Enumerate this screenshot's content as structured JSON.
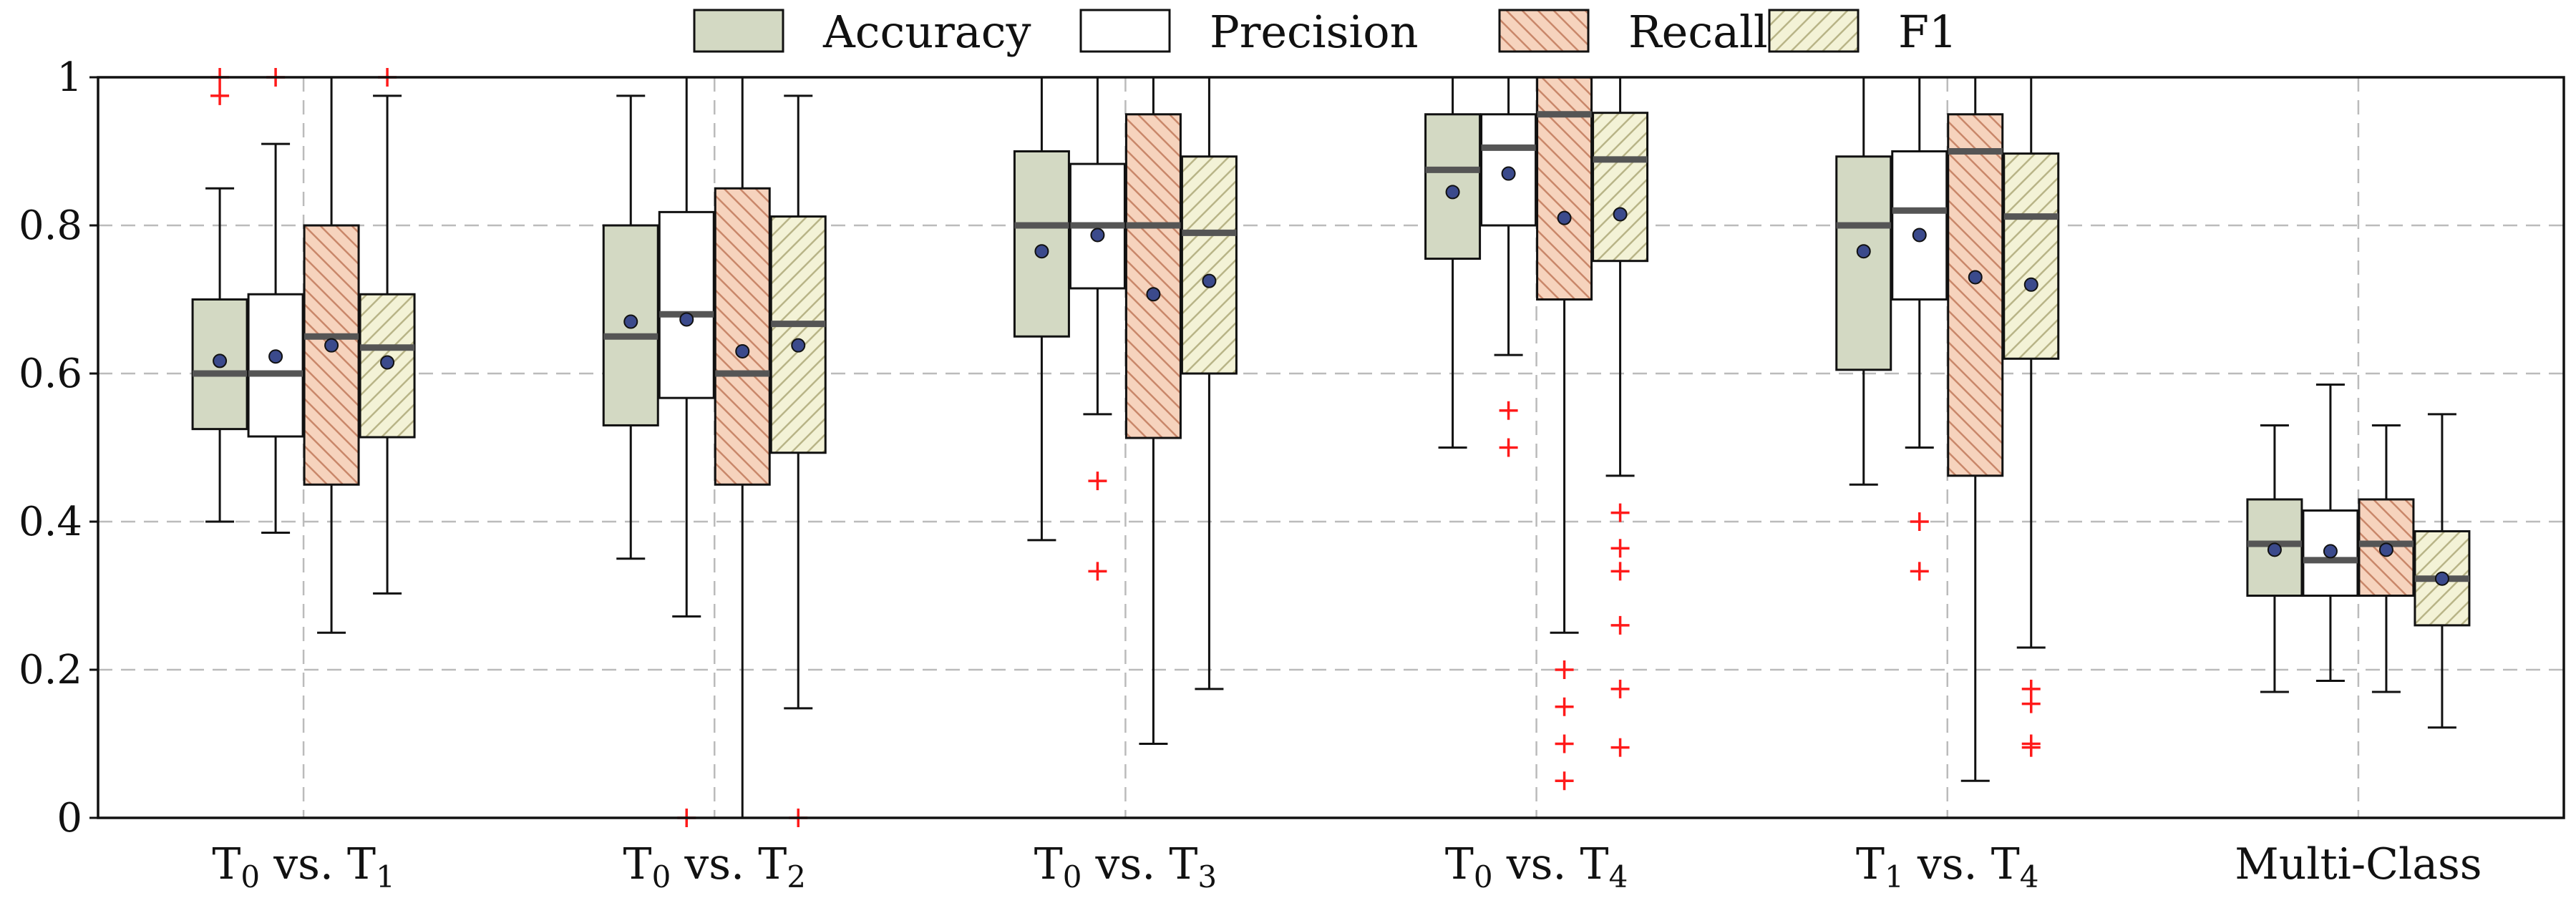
{
  "chart_data": {
    "type": "boxplot",
    "title": "",
    "xlabel": "",
    "ylabel": "",
    "ylim": [
      0,
      1
    ],
    "yticks": [
      0,
      0.2,
      0.4,
      0.6,
      0.8,
      1
    ],
    "ytick_labels": [
      "0",
      "0.2",
      "0.4",
      "0.6",
      "0.8",
      "1"
    ],
    "grid": true,
    "legend_position": "top-center",
    "categories": [
      {
        "prefix": "T",
        "sub1": "0",
        "mid": " vs. T",
        "sub2": "1"
      },
      {
        "prefix": "T",
        "sub1": "0",
        "mid": " vs. T",
        "sub2": "2"
      },
      {
        "prefix": "T",
        "sub1": "0",
        "mid": " vs. T",
        "sub2": "3"
      },
      {
        "prefix": "T",
        "sub1": "0",
        "mid": " vs. T",
        "sub2": "4"
      },
      {
        "prefix": "T",
        "sub1": "1",
        "mid": " vs. T",
        "sub2": "4"
      },
      {
        "prefix": "Multi-Class",
        "sub1": "",
        "mid": "",
        "sub2": ""
      }
    ],
    "series": [
      {
        "name": "Accuracy",
        "fill": "#d3d9c3",
        "hatch": "none",
        "boxes": [
          {
            "wlo": 0.4,
            "q1": 0.525,
            "med": 0.6,
            "q3": 0.7,
            "whi": 0.85,
            "mean": 0.617,
            "outliers": [
              0.975,
              1.0
            ]
          },
          {
            "wlo": 0.35,
            "q1": 0.53,
            "med": 0.65,
            "q3": 0.8,
            "whi": 0.975,
            "mean": 0.67,
            "outliers": []
          },
          {
            "wlo": 0.375,
            "q1": 0.65,
            "med": 0.8,
            "q3": 0.9,
            "whi": 1.0,
            "mean": 0.765,
            "outliers": []
          },
          {
            "wlo": 0.5,
            "q1": 0.755,
            "med": 0.875,
            "q3": 0.95,
            "whi": 1.0,
            "mean": 0.845,
            "outliers": []
          },
          {
            "wlo": 0.45,
            "q1": 0.605,
            "med": 0.8,
            "q3": 0.893,
            "whi": 1.0,
            "mean": 0.765,
            "outliers": []
          },
          {
            "wlo": 0.17,
            "q1": 0.3,
            "med": 0.37,
            "q3": 0.43,
            "whi": 0.53,
            "mean": 0.362,
            "outliers": []
          }
        ]
      },
      {
        "name": "Precision",
        "fill": "#ffffff",
        "hatch": "none",
        "boxes": [
          {
            "wlo": 0.385,
            "q1": 0.515,
            "med": 0.6,
            "q3": 0.707,
            "whi": 0.91,
            "mean": 0.623,
            "outliers": [
              1.0
            ]
          },
          {
            "wlo": 0.272,
            "q1": 0.567,
            "med": 0.68,
            "q3": 0.818,
            "whi": 1.0,
            "mean": 0.673,
            "outliers": [
              0.0
            ]
          },
          {
            "wlo": 0.545,
            "q1": 0.715,
            "med": 0.8,
            "q3": 0.883,
            "whi": 1.0,
            "mean": 0.787,
            "outliers": [
              0.455,
              0.333
            ]
          },
          {
            "wlo": 0.625,
            "q1": 0.8,
            "med": 0.905,
            "q3": 0.95,
            "whi": 1.0,
            "mean": 0.87,
            "outliers": [
              0.55,
              0.5
            ]
          },
          {
            "wlo": 0.5,
            "q1": 0.7,
            "med": 0.82,
            "q3": 0.9,
            "whi": 1.0,
            "mean": 0.787,
            "outliers": [
              0.4,
              0.333
            ]
          },
          {
            "wlo": 0.185,
            "q1": 0.3,
            "med": 0.348,
            "q3": 0.415,
            "whi": 0.585,
            "mean": 0.36,
            "outliers": []
          }
        ]
      },
      {
        "name": "Recall",
        "fill": "#f6d3bd",
        "hatch": "back",
        "boxes": [
          {
            "wlo": 0.25,
            "q1": 0.45,
            "med": 0.65,
            "q3": 0.8,
            "whi": 1.0,
            "mean": 0.638,
            "outliers": []
          },
          {
            "wlo": 0.0,
            "q1": 0.45,
            "med": 0.6,
            "q3": 0.85,
            "whi": 1.0,
            "mean": 0.63,
            "outliers": []
          },
          {
            "wlo": 0.1,
            "q1": 0.513,
            "med": 0.8,
            "q3": 0.95,
            "whi": 1.0,
            "mean": 0.707,
            "outliers": []
          },
          {
            "wlo": 0.25,
            "q1": 0.7,
            "med": 0.95,
            "q3": 1.0,
            "whi": 1.0,
            "mean": 0.81,
            "outliers": [
              0.2,
              0.15,
              0.1,
              0.05
            ]
          },
          {
            "wlo": 0.05,
            "q1": 0.462,
            "med": 0.9,
            "q3": 0.95,
            "whi": 1.0,
            "mean": 0.73,
            "outliers": []
          },
          {
            "wlo": 0.17,
            "q1": 0.3,
            "med": 0.37,
            "q3": 0.43,
            "whi": 0.53,
            "mean": 0.362,
            "outliers": []
          }
        ]
      },
      {
        "name": "F1",
        "fill": "#f3f2d6",
        "hatch": "fwd",
        "boxes": [
          {
            "wlo": 0.303,
            "q1": 0.514,
            "med": 0.635,
            "q3": 0.707,
            "whi": 0.975,
            "mean": 0.615,
            "outliers": [
              1.0
            ]
          },
          {
            "wlo": 0.148,
            "q1": 0.493,
            "med": 0.667,
            "q3": 0.812,
            "whi": 0.975,
            "mean": 0.638,
            "outliers": [
              0.0
            ]
          },
          {
            "wlo": 0.174,
            "q1": 0.6,
            "med": 0.79,
            "q3": 0.893,
            "whi": 1.0,
            "mean": 0.725,
            "outliers": []
          },
          {
            "wlo": 0.462,
            "q1": 0.752,
            "med": 0.889,
            "q3": 0.952,
            "whi": 1.0,
            "mean": 0.815,
            "outliers": [
              0.412,
              0.364,
              0.333,
              0.26,
              0.174,
              0.095
            ]
          },
          {
            "wlo": 0.23,
            "q1": 0.62,
            "med": 0.812,
            "q3": 0.897,
            "whi": 1.0,
            "mean": 0.72,
            "outliers": [
              0.174,
              0.154,
              0.1,
              0.095
            ]
          },
          {
            "wlo": 0.122,
            "q1": 0.26,
            "med": 0.323,
            "q3": 0.387,
            "whi": 0.545,
            "mean": 0.323,
            "outliers": []
          }
        ]
      }
    ],
    "colors": {
      "edge": "#111111",
      "median": "#555555",
      "mean_fill": "#3b4a8c",
      "outlier": "#ff1a1a",
      "grid": "#bbbbbb",
      "hatch_recall": "#c9876a",
      "hatch_f1": "#b8b487"
    }
  }
}
